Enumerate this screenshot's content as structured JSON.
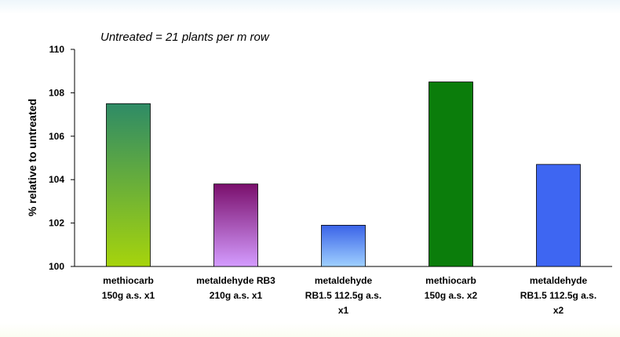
{
  "chart_data": {
    "type": "bar",
    "subtitle": "Untreated = 21 plants per m row",
    "ylabel": "% relative to untreated",
    "xlabel": "",
    "ylim": [
      100,
      110
    ],
    "yticks": [
      "100",
      "102",
      "104",
      "106",
      "108",
      "110"
    ],
    "grid": false,
    "legend": "none",
    "categories": [
      "methiocarb\n150g a.s. x1",
      "metaldehyde RB3\n210g a.s. x1",
      "metaldehyde\nRB1.5 112.5g a.s.\nx1",
      "methiocarb\n150g a.s. x2",
      "metaldehyde\nRB1.5 112.5g a.s.\nx2"
    ],
    "values": [
      107.5,
      103.8,
      101.9,
      108.5,
      104.7
    ],
    "bar_colors": [
      {
        "top": "#2e8b66",
        "bottom": "#a6d40c"
      },
      {
        "top": "#7a0f6c",
        "bottom": "#d49cff"
      },
      {
        "top": "#3a63e8",
        "bottom": "#9fd0ff"
      },
      {
        "top": "#0b7d0b",
        "bottom": "#0b7d0b"
      },
      {
        "top": "#3e66f2",
        "bottom": "#3e66f2"
      }
    ]
  }
}
